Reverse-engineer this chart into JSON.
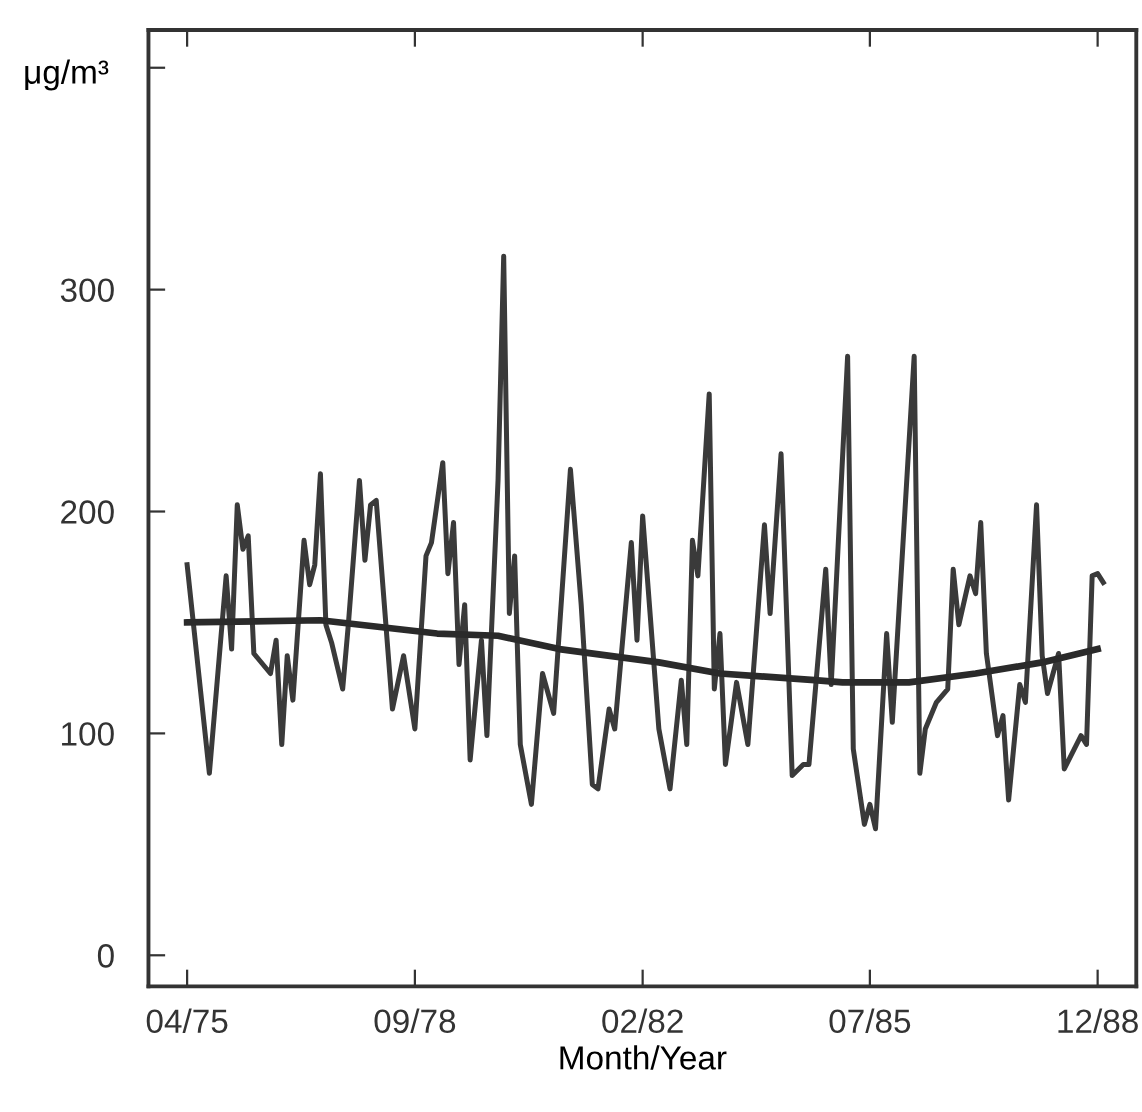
{
  "chart_data": {
    "type": "line",
    "xlabel": "Month/Year",
    "ylabel": "μg/m³",
    "xlim": [
      "1974-09",
      "1989-07"
    ],
    "ylim": [
      -14,
      417
    ],
    "xticks": [
      {
        "value": "1975-04",
        "label": "04/75"
      },
      {
        "value": "1978-09",
        "label": "09/78"
      },
      {
        "value": "1982-02",
        "label": "02/82"
      },
      {
        "value": "1985-07",
        "label": "07/85"
      },
      {
        "value": "1988-12",
        "label": "12/88"
      }
    ],
    "yticks": [
      0,
      100,
      200,
      300,
      {
        "value": 400,
        "label": null
      }
    ],
    "grid": false,
    "legend": false,
    "marker": "none",
    "line_style": "solid",
    "series": [
      {
        "color": "#3a3a3a",
        "x": [
          "1975-04",
          "1975-08",
          "1975-11",
          "1975-12",
          "1976-01",
          "1976-02",
          "1976-03",
          "1976-04",
          "1976-07",
          "1976-08",
          "1976-09",
          "1976-10",
          "1976-11",
          "1977-01",
          "1977-02",
          "1977-03",
          "1977-04",
          "1977-05",
          "1977-06",
          "1977-08",
          "1977-09",
          "1977-11",
          "1977-12",
          "1978-01",
          "1978-02",
          "1978-05",
          "1978-07",
          "1978-09",
          "1978-11",
          "1978-12",
          "1979-02",
          "1979-03",
          "1979-04",
          "1979-05",
          "1979-06",
          "1979-07",
          "1979-09",
          "1979-10",
          "1979-12",
          "1980-01",
          "1980-02",
          "1980-03",
          "1980-04",
          "1980-06",
          "1980-08",
          "1980-10",
          "1981-01",
          "1981-03",
          "1981-05",
          "1981-06",
          "1981-08",
          "1981-09",
          "1981-12",
          "1982-01",
          "1982-02",
          "1982-05",
          "1982-07",
          "1982-09",
          "1982-10",
          "1982-11",
          "1982-12",
          "1983-02",
          "1983-03",
          "1983-04",
          "1983-05",
          "1983-07",
          "1983-09",
          "1983-12",
          "1984-01",
          "1984-03",
          "1984-05",
          "1984-07",
          "1984-08",
          "1984-11",
          "1984-12",
          "1985-03",
          "1985-04",
          "1985-06",
          "1985-07",
          "1985-08",
          "1985-10",
          "1985-11",
          "1986-03",
          "1986-04",
          "1986-05",
          "1986-07",
          "1986-09",
          "1986-10",
          "1986-11",
          "1987-01",
          "1987-02",
          "1987-03",
          "1987-04",
          "1987-06",
          "1987-07",
          "1987-08",
          "1987-10",
          "1987-11",
          "1988-01",
          "1988-02",
          "1988-03",
          "1988-05",
          "1988-06",
          "1988-09",
          "1988-10",
          "1988-11",
          "1988-12",
          "1989-01"
        ],
        "values": [
          176,
          82,
          171,
          138,
          203,
          183,
          189,
          136,
          127,
          142,
          95,
          135,
          115,
          187,
          167,
          176,
          217,
          149,
          141,
          120,
          149,
          214,
          178,
          203,
          205,
          111,
          135,
          102,
          180,
          186,
          222,
          172,
          195,
          131,
          158,
          88,
          142,
          99,
          214,
          315,
          154,
          180,
          95,
          68,
          127,
          109,
          219,
          158,
          77,
          75,
          111,
          102,
          186,
          142,
          198,
          102,
          75,
          124,
          95,
          187,
          171,
          253,
          120,
          145,
          86,
          123,
          95,
          194,
          154,
          226,
          81,
          86,
          86,
          174,
          122,
          270,
          93,
          59,
          68,
          57,
          145,
          105,
          270,
          82,
          102,
          114,
          120,
          174,
          149,
          171,
          163,
          195,
          136,
          99,
          108,
          70,
          122,
          114,
          203,
          135,
          118,
          136,
          84,
          99,
          95,
          171,
          172,
          168
        ]
      },
      {
        "color": "#2a2a2a",
        "x": [
          "1975-04",
          "1977-04",
          "1979-01",
          "1979-12",
          "1980-11",
          "1982-05",
          "1983-04",
          "1984-09",
          "1985-02",
          "1986-02",
          "1987-02",
          "1988-02",
          "1988-12"
        ],
        "values": [
          150,
          151,
          145,
          144,
          138,
          132,
          127,
          124,
          123,
          123,
          127,
          132,
          138
        ]
      }
    ]
  }
}
